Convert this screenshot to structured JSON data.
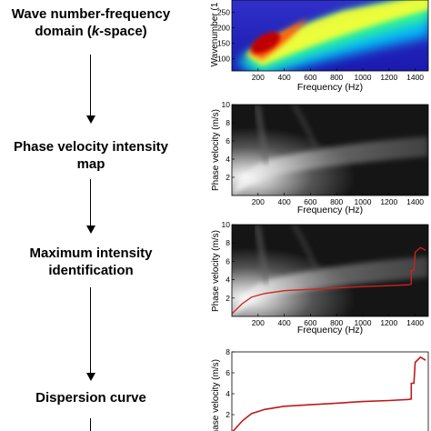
{
  "steps": [
    {
      "line1": "Wave number-frequency",
      "line2_pre": "domain (",
      "line2_em": "k",
      "line2_post": "-space)"
    },
    {
      "line1": "Phase velocity intensity",
      "line2": "map"
    },
    {
      "line1": "Maximum intensity",
      "line2": "identification"
    },
    {
      "line1": "Dispersion curve"
    }
  ],
  "plots": {
    "kspace": {
      "ylabel": "Wavenumber (1",
      "xlabel": "Frequency (Hz)",
      "xticks": [
        "200",
        "400",
        "600",
        "800",
        "1000",
        "1200",
        "1400"
      ],
      "yticks": [
        "100",
        "150",
        "200",
        "250"
      ]
    },
    "phase_map": {
      "ylabel": "Phase velocity (m/s)",
      "xlabel": "Frequency (Hz)",
      "xticks": [
        "200",
        "400",
        "600",
        "800",
        "1000",
        "1200",
        "1400"
      ],
      "yticks": [
        "2",
        "4",
        "6",
        "8",
        "10"
      ]
    },
    "max_intensity": {
      "ylabel": "Phase velocity (m/s)",
      "xlabel": "Frequency (Hz)",
      "xticks": [
        "200",
        "400",
        "600",
        "800",
        "1000",
        "1200",
        "1400"
      ],
      "yticks": [
        "2",
        "4",
        "6",
        "8",
        "10"
      ],
      "curve_color": "#d42020"
    },
    "dispersion": {
      "ylabel": "Phase velocity (m/s)",
      "yticks": [
        "2",
        "4",
        "6",
        "8"
      ],
      "curve_color": "#c01818"
    }
  },
  "chart_data": [
    {
      "type": "heatmap",
      "xlabel": "Frequency (Hz)",
      "ylabel": "Wavenumber (1",
      "xlim": [
        0,
        1500
      ],
      "ylim": [
        60,
        290
      ],
      "description_values": {
        "ridge_start": [
          150,
          100
        ],
        "ridge_end": [
          1450,
          290
        ]
      }
    },
    {
      "type": "heatmap",
      "xlabel": "Frequency (Hz)",
      "ylabel": "Phase velocity (m/s)",
      "xlim": [
        0,
        1500
      ],
      "ylim": [
        0,
        10
      ]
    },
    {
      "type": "line",
      "xlabel": "Frequency (Hz)",
      "ylabel": "Phase velocity (m/s)",
      "xlim": [
        0,
        1500
      ],
      "ylim": [
        0,
        10
      ],
      "x": [
        0,
        80,
        150,
        250,
        400,
        600,
        800,
        1000,
        1200,
        1350,
        1370,
        1370,
        1390,
        1400,
        1440,
        1480
      ],
      "y": [
        0.3,
        1.4,
        2.1,
        2.5,
        2.8,
        2.95,
        3.1,
        3.25,
        3.35,
        3.45,
        3.5,
        5.0,
        5.0,
        7.0,
        7.5,
        7.2
      ]
    },
    {
      "type": "line",
      "ylabel": "Phase velocity (m/s)",
      "xlim": [
        0,
        1500
      ],
      "ylim": [
        0,
        8
      ],
      "x": [
        0,
        80,
        150,
        250,
        400,
        600,
        800,
        1000,
        1200,
        1350,
        1370,
        1370,
        1390,
        1400,
        1440,
        1480
      ],
      "y": [
        0.3,
        1.4,
        2.1,
        2.5,
        2.8,
        2.95,
        3.1,
        3.25,
        3.35,
        3.45,
        3.5,
        5.0,
        5.0,
        7.0,
        7.5,
        7.2
      ]
    }
  ]
}
